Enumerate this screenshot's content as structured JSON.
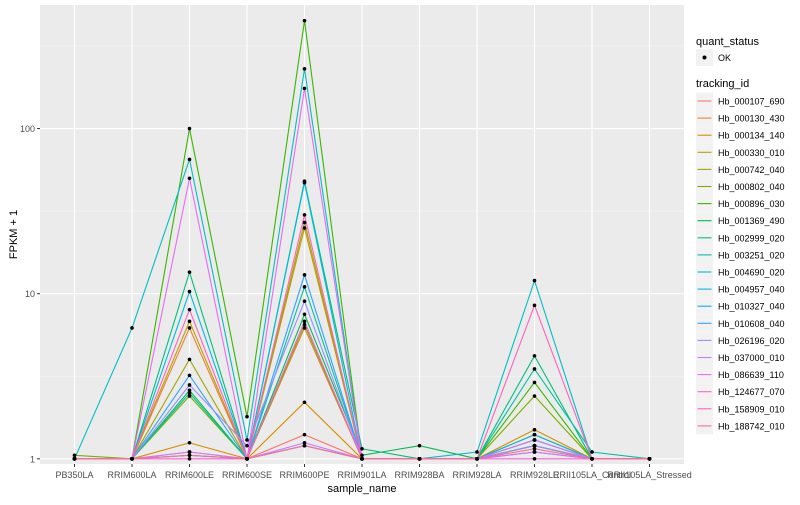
{
  "chart_data": {
    "type": "line",
    "scale": "log10",
    "title": "",
    "xlabel": "sample_name",
    "ylabel": "FPKM + 1",
    "ylim": [
      0.93,
      560
    ],
    "y_ticks": [
      1,
      10,
      100
    ],
    "y_tick_labels": [
      "1",
      "10",
      "100"
    ],
    "categories": [
      "PB350LA",
      "RRIM600LA",
      "RRIM600LE",
      "RRIM600SE",
      "RRIM600PE",
      "RRIM901LA",
      "RRIM928BA",
      "RRIM928LA",
      "RRIM928LE",
      "RRII105LA_Control",
      "RRII105LA_Stressed"
    ],
    "legend_points": {
      "title": "quant_status",
      "entries": [
        "OK"
      ]
    },
    "legend_lines": {
      "title": "tracking_id"
    },
    "series": [
      {
        "name": "Hb_000107_690",
        "color": "#F8766D",
        "values": [
          1.0,
          1.0,
          1.1,
          1.0,
          1.4,
          1.0,
          1.0,
          1.0,
          1.2,
          1.0,
          1.0
        ]
      },
      {
        "name": "Hb_000130_430",
        "color": "#EA8331",
        "values": [
          1.0,
          1.0,
          6.2,
          1.0,
          6.2,
          1.0,
          1.0,
          1.0,
          1.3,
          1.0,
          1.0
        ]
      },
      {
        "name": "Hb_000134_140",
        "color": "#D89000",
        "values": [
          1.0,
          1.0,
          1.25,
          1.0,
          2.2,
          1.0,
          1.0,
          1.0,
          1.5,
          1.0,
          1.0
        ]
      },
      {
        "name": "Hb_000330_010",
        "color": "#C09B00",
        "values": [
          1.0,
          1.0,
          6.8,
          1.0,
          25.0,
          1.0,
          1.0,
          1.0,
          1.2,
          1.0,
          1.0
        ]
      },
      {
        "name": "Hb_000742_040",
        "color": "#A3A500",
        "values": [
          1.0,
          1.0,
          4.0,
          1.0,
          27.0,
          1.0,
          1.0,
          1.0,
          1.4,
          1.0,
          1.0
        ]
      },
      {
        "name": "Hb_000802_040",
        "color": "#7CAE00",
        "values": [
          1.05,
          1.0,
          2.4,
          1.0,
          6.5,
          1.0,
          1.0,
          1.0,
          2.4,
          1.0,
          1.0
        ]
      },
      {
        "name": "Hb_000896_030",
        "color": "#39B600",
        "values": [
          1.0,
          1.0,
          100.0,
          1.8,
          450.0,
          1.0,
          1.0,
          1.0,
          2.9,
          1.0,
          1.0
        ]
      },
      {
        "name": "Hb_001369_490",
        "color": "#00BB4E",
        "values": [
          1.0,
          1.0,
          2.6,
          1.0,
          7.5,
          1.05,
          1.2,
          1.0,
          1.2,
          1.0,
          1.0
        ]
      },
      {
        "name": "Hb_002999_020",
        "color": "#00BF7D",
        "values": [
          1.0,
          1.0,
          13.5,
          1.0,
          48.0,
          1.15,
          1.0,
          1.0,
          4.2,
          1.0,
          1.0
        ]
      },
      {
        "name": "Hb_003251_020",
        "color": "#00C1A3",
        "values": [
          1.0,
          1.0,
          2.5,
          1.0,
          11.0,
          1.0,
          1.0,
          1.0,
          3.5,
          1.1,
          1.0
        ]
      },
      {
        "name": "Hb_004690_020",
        "color": "#00BFC4",
        "values": [
          1.0,
          6.2,
          65.0,
          1.3,
          230.0,
          1.0,
          1.0,
          1.1,
          12.0,
          1.0,
          1.0
        ]
      },
      {
        "name": "Hb_004957_040",
        "color": "#00BAE0",
        "values": [
          1.0,
          1.0,
          10.3,
          1.0,
          47.0,
          1.0,
          1.0,
          1.0,
          1.4,
          1.0,
          1.0
        ]
      },
      {
        "name": "Hb_010327_040",
        "color": "#00B0F6",
        "values": [
          1.0,
          1.0,
          1.05,
          1.0,
          1.2,
          1.0,
          1.0,
          1.0,
          1.1,
          1.0,
          1.0
        ]
      },
      {
        "name": "Hb_010608_040",
        "color": "#35A2FF",
        "values": [
          1.0,
          1.0,
          3.2,
          1.0,
          13.0,
          1.0,
          1.0,
          1.0,
          1.3,
          1.0,
          1.0
        ]
      },
      {
        "name": "Hb_026196_020",
        "color": "#9590FF",
        "values": [
          1.0,
          1.0,
          2.8,
          1.2,
          9.0,
          1.0,
          1.0,
          1.0,
          1.2,
          1.0,
          1.0
        ]
      },
      {
        "name": "Hb_037000_010",
        "color": "#C77CFF",
        "values": [
          1.0,
          1.0,
          1.1,
          1.0,
          1.25,
          1.0,
          1.0,
          1.0,
          1.3,
          1.0,
          1.0
        ]
      },
      {
        "name": "Hb_086639_110",
        "color": "#E76BF3",
        "values": [
          1.0,
          1.0,
          50.0,
          1.0,
          175.0,
          1.0,
          1.0,
          1.0,
          1.1,
          1.0,
          1.0
        ]
      },
      {
        "name": "Hb_124677_070",
        "color": "#FA62DB",
        "values": [
          1.0,
          1.0,
          1.0,
          1.0,
          6.8,
          1.0,
          1.0,
          1.0,
          1.0,
          1.0,
          1.0
        ]
      },
      {
        "name": "Hb_158909_010",
        "color": "#FF62BC",
        "values": [
          1.0,
          1.0,
          8.0,
          1.0,
          30.0,
          1.0,
          1.0,
          1.0,
          8.5,
          1.0,
          1.0
        ]
      },
      {
        "name": "Hb_188742_010",
        "color": "#FF6C91",
        "values": [
          1.0,
          1.0,
          1.05,
          1.0,
          1.2,
          1.0,
          1.0,
          1.0,
          1.15,
          1.0,
          1.0
        ]
      }
    ]
  }
}
